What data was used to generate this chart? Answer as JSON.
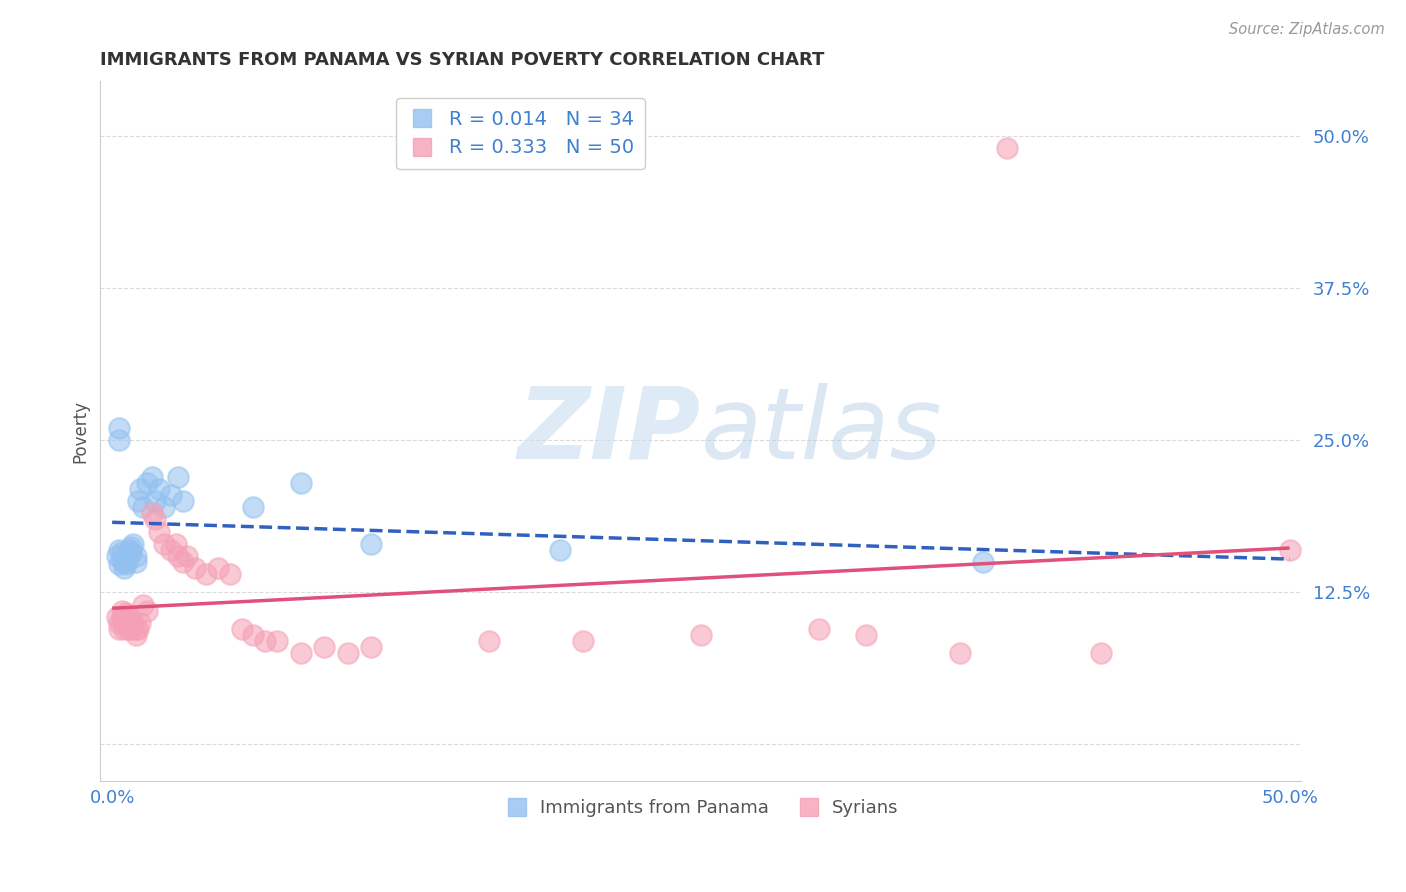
{
  "title": "IMMIGRANTS FROM PANAMA VS SYRIAN POVERTY CORRELATION CHART",
  "source": "Source: ZipAtlas.com",
  "ylabel": "Poverty",
  "xlim": [
    -0.005,
    0.505
  ],
  "ylim": [
    -0.03,
    0.545
  ],
  "yticks": [
    0.0,
    0.125,
    0.25,
    0.375,
    0.5
  ],
  "ytick_labels": [
    "",
    "12.5%",
    "25.0%",
    "37.5%",
    "50.0%"
  ],
  "xtick_labels": [
    "0.0%",
    "50.0%"
  ],
  "xtick_positions": [
    0.0,
    0.5
  ],
  "legend1_R": "0.014",
  "legend1_N": "34",
  "legend2_R": "0.333",
  "legend2_N": "50",
  "panama_color": "#92c0f0",
  "syrian_color": "#f5a0b5",
  "panama_edge": "#92c0f0",
  "syrian_edge": "#f5a0b5",
  "line_panama_color": "#3060c0",
  "line_syrian_color": "#e0507a",
  "tick_color": "#4080d0",
  "watermark_color": "#ddeef8",
  "background_color": "#ffffff",
  "grid_color": "#d8d8d8",
  "panama_points": [
    [
      0.002,
      0.155
    ],
    [
      0.003,
      0.148
    ],
    [
      0.003,
      0.16
    ],
    [
      0.004,
      0.158
    ],
    [
      0.004,
      0.152
    ],
    [
      0.005,
      0.145
    ],
    [
      0.005,
      0.15
    ],
    [
      0.006,
      0.155
    ],
    [
      0.006,
      0.148
    ],
    [
      0.007,
      0.16
    ],
    [
      0.007,
      0.155
    ],
    [
      0.008,
      0.162
    ],
    [
      0.008,
      0.158
    ],
    [
      0.009,
      0.165
    ],
    [
      0.01,
      0.155
    ],
    [
      0.01,
      0.15
    ],
    [
      0.011,
      0.2
    ],
    [
      0.012,
      0.21
    ],
    [
      0.013,
      0.195
    ],
    [
      0.015,
      0.215
    ],
    [
      0.017,
      0.22
    ],
    [
      0.018,
      0.2
    ],
    [
      0.02,
      0.21
    ],
    [
      0.022,
      0.195
    ],
    [
      0.025,
      0.205
    ],
    [
      0.028,
      0.22
    ],
    [
      0.03,
      0.2
    ],
    [
      0.003,
      0.25
    ],
    [
      0.003,
      0.26
    ],
    [
      0.06,
      0.195
    ],
    [
      0.08,
      0.215
    ],
    [
      0.11,
      0.165
    ],
    [
      0.19,
      0.16
    ],
    [
      0.37,
      0.15
    ]
  ],
  "syrian_points": [
    [
      0.002,
      0.105
    ],
    [
      0.003,
      0.1
    ],
    [
      0.003,
      0.095
    ],
    [
      0.004,
      0.11
    ],
    [
      0.004,
      0.105
    ],
    [
      0.005,
      0.1
    ],
    [
      0.005,
      0.095
    ],
    [
      0.006,
      0.108
    ],
    [
      0.006,
      0.1
    ],
    [
      0.007,
      0.095
    ],
    [
      0.007,
      0.105
    ],
    [
      0.008,
      0.1
    ],
    [
      0.008,
      0.095
    ],
    [
      0.009,
      0.1
    ],
    [
      0.01,
      0.095
    ],
    [
      0.01,
      0.09
    ],
    [
      0.011,
      0.095
    ],
    [
      0.012,
      0.1
    ],
    [
      0.013,
      0.115
    ],
    [
      0.015,
      0.11
    ],
    [
      0.017,
      0.19
    ],
    [
      0.018,
      0.185
    ],
    [
      0.02,
      0.175
    ],
    [
      0.022,
      0.165
    ],
    [
      0.025,
      0.16
    ],
    [
      0.027,
      0.165
    ],
    [
      0.028,
      0.155
    ],
    [
      0.03,
      0.15
    ],
    [
      0.032,
      0.155
    ],
    [
      0.035,
      0.145
    ],
    [
      0.04,
      0.14
    ],
    [
      0.045,
      0.145
    ],
    [
      0.05,
      0.14
    ],
    [
      0.055,
      0.095
    ],
    [
      0.06,
      0.09
    ],
    [
      0.065,
      0.085
    ],
    [
      0.07,
      0.085
    ],
    [
      0.08,
      0.075
    ],
    [
      0.09,
      0.08
    ],
    [
      0.1,
      0.075
    ],
    [
      0.11,
      0.08
    ],
    [
      0.16,
      0.085
    ],
    [
      0.2,
      0.085
    ],
    [
      0.25,
      0.09
    ],
    [
      0.3,
      0.095
    ],
    [
      0.32,
      0.09
    ],
    [
      0.36,
      0.075
    ],
    [
      0.38,
      0.49
    ],
    [
      0.42,
      0.075
    ],
    [
      0.5,
      0.16
    ]
  ]
}
